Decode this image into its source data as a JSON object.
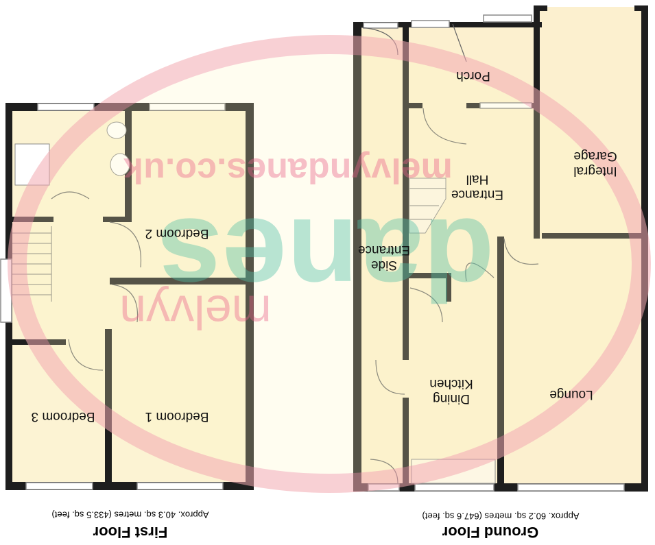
{
  "watermark": {
    "url": "melvyndanes.co.uk",
    "brand": "danes",
    "name": "melvyn"
  },
  "first_floor": {
    "title": "First Floor",
    "area": "Approx. 40.3 sq. metres (433.5 sq. feet)",
    "rooms": [
      {
        "lines": [
          "Bedroom 1"
        ]
      },
      {
        "lines": [
          "Bedroom 2"
        ]
      },
      {
        "lines": [
          "Bedroom 3"
        ]
      }
    ]
  },
  "ground_floor": {
    "title": "Ground Floor",
    "area": "Approx. 60.2 sq. metres (647.6 sq. feet)",
    "rooms": [
      {
        "lines": [
          "Porch"
        ]
      },
      {
        "lines": [
          "Integral",
          "Garage"
        ]
      },
      {
        "lines": [
          "Entrance",
          "Hall"
        ]
      },
      {
        "lines": [
          "Side",
          "Entrance"
        ]
      },
      {
        "lines": [
          "Dining",
          "Kitchen"
        ]
      },
      {
        "lines": [
          "Lounge"
        ]
      }
    ]
  }
}
